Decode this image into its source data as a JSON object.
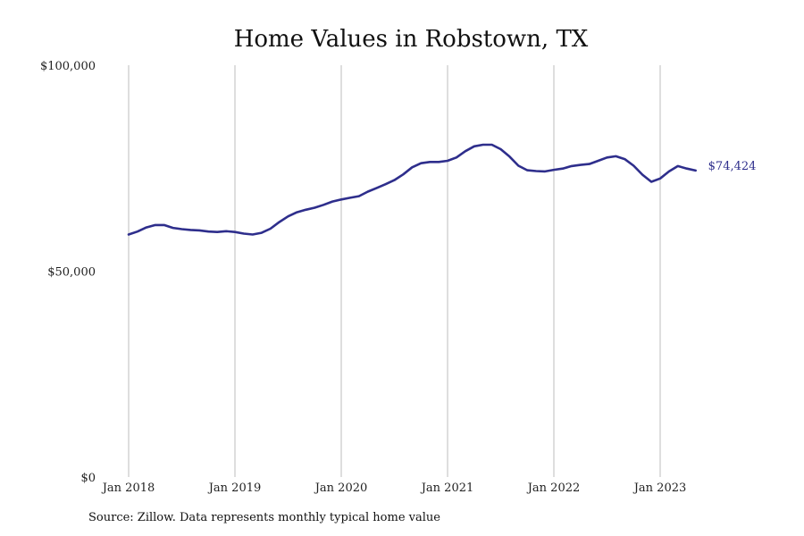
{
  "chart_data": {
    "type": "line",
    "title": "Home Values in Robstown, TX",
    "xlabel": "",
    "ylabel": "",
    "ylim": [
      0,
      100000
    ],
    "yticks": [
      {
        "value": 0,
        "label": "$0"
      },
      {
        "value": 50000,
        "label": "$50,000"
      },
      {
        "value": 100000,
        "label": "$100,000"
      }
    ],
    "xticks": [
      {
        "value": "2018-01",
        "label": "Jan 2018"
      },
      {
        "value": "2019-01",
        "label": "Jan 2019"
      },
      {
        "value": "2020-01",
        "label": "Jan 2020"
      },
      {
        "value": "2021-01",
        "label": "Jan 2021"
      },
      {
        "value": "2022-01",
        "label": "Jan 2022"
      },
      {
        "value": "2023-01",
        "label": "Jan 2023"
      }
    ],
    "xlim": [
      "2017-12",
      "2024-01"
    ],
    "grid": "vertical",
    "color": "#2e2e8c",
    "end_label": "$74,424",
    "series": [
      {
        "x": [
          "2018-01",
          "2018-02",
          "2018-03",
          "2018-04",
          "2018-05",
          "2018-06",
          "2018-07",
          "2018-08",
          "2018-09",
          "2018-10",
          "2018-11",
          "2018-12",
          "2019-01",
          "2019-02",
          "2019-03",
          "2019-04",
          "2019-05",
          "2019-06",
          "2019-07",
          "2019-08",
          "2019-09",
          "2019-10",
          "2019-11",
          "2019-12",
          "2020-01",
          "2020-02",
          "2020-03",
          "2020-04",
          "2020-05",
          "2020-06",
          "2020-07",
          "2020-08",
          "2020-09",
          "2020-10",
          "2020-11",
          "2020-12",
          "2021-01",
          "2021-02",
          "2021-03",
          "2021-04",
          "2021-05",
          "2021-06",
          "2021-07",
          "2021-08",
          "2021-09",
          "2021-10",
          "2021-11",
          "2021-12",
          "2022-01",
          "2022-02",
          "2022-03",
          "2022-04",
          "2022-05",
          "2022-06",
          "2022-07",
          "2022-08",
          "2022-09",
          "2022-10",
          "2022-11",
          "2022-12",
          "2023-01",
          "2023-02",
          "2023-03",
          "2023-04",
          "2023-05"
        ],
        "values": [
          58900,
          59600,
          60600,
          61200,
          61200,
          60500,
          60200,
          60000,
          59900,
          59600,
          59500,
          59700,
          59500,
          59100,
          58900,
          59300,
          60300,
          61900,
          63300,
          64300,
          64900,
          65400,
          66100,
          66900,
          67400,
          67800,
          68200,
          69300,
          70200,
          71100,
          72100,
          73500,
          75200,
          76200,
          76500,
          76500,
          76800,
          77600,
          79100,
          80300,
          80700,
          80700,
          79600,
          77800,
          75600,
          74500,
          74300,
          74200,
          74600,
          74900,
          75500,
          75800,
          76000,
          76800,
          77600,
          77900,
          77200,
          75600,
          73400,
          71700,
          72500,
          74200,
          75500,
          74900,
          74424
        ]
      }
    ]
  },
  "source_text": "Source: Zillow. Data represents monthly typical home value"
}
